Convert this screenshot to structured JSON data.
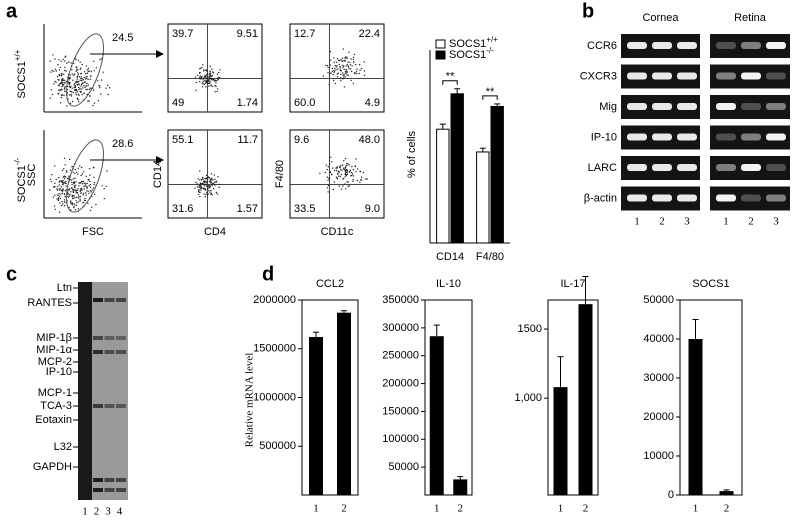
{
  "panel_labels": [
    "a",
    "b",
    "c",
    "d"
  ],
  "panel_a": {
    "rows": [
      {
        "genotype": {
          "name": "SOCS1",
          "sup": "+/+"
        },
        "gate": "24.5",
        "quadrants": [
          [
            "39.7",
            "9.51",
            "49",
            "1.74"
          ],
          [
            "12.7",
            "22.4",
            "60.0",
            "4.9"
          ]
        ]
      },
      {
        "genotype": {
          "name": "SOCS1",
          "sup": "-/-"
        },
        "gate": "28.6",
        "quadrants": [
          [
            "55.1",
            "11.7",
            "31.6",
            "1.57"
          ],
          [
            "9.6",
            "48.0",
            "33.5",
            "9.0"
          ]
        ]
      }
    ],
    "axes": {
      "ssc": "SSC",
      "fsc": "FSC",
      "cd14": "CD14",
      "cd4": "CD4",
      "f480": "F4/80",
      "cd11c": "CD11c"
    }
  },
  "panel_b": {
    "groups": [
      "Cornea",
      "Retina"
    ],
    "genes": [
      "CCR6",
      "CXCR3",
      "Mig",
      "IP-10",
      "LARC",
      "β-actin"
    ],
    "lanes": [
      "1",
      "2",
      "3"
    ]
  },
  "panel_c": {
    "genes": [
      "Ltn",
      "RANTES",
      "MIP-1β",
      "MIP-1α",
      "MCP-2",
      "IP-10",
      "MCP-1",
      "TCA-3",
      "Eotaxin",
      "L32",
      "GAPDH"
    ],
    "lanes": [
      "1",
      "2",
      "3",
      "4"
    ]
  },
  "panel_d": {
    "ylabel": "Relative mRNA level"
  },
  "chart_data": [
    {
      "type": "bar",
      "ylabel": "% of cells",
      "categories": [
        "CD14",
        "F4/80"
      ],
      "series": [
        {
          "name": "SOCS1",
          "name_sup": "+/+",
          "color": "#ffffff",
          "values": [
            45,
            36
          ],
          "errors": [
            2,
            1.5
          ]
        },
        {
          "name": "SOCS1",
          "name_sup": "-/-",
          "color": "#000000",
          "values": [
            59,
            54
          ],
          "errors": [
            2,
            1
          ]
        }
      ],
      "ylim": [
        0,
        70
      ],
      "annotations": [
        "**",
        "**"
      ],
      "legend": "top"
    },
    {
      "type": "bar",
      "title": "CCL2",
      "categories": [
        "1",
        "2"
      ],
      "values": [
        1620000,
        1870000
      ],
      "errors": [
        50000,
        20000
      ],
      "color": "#000000",
      "ylim": [
        0,
        2000000
      ],
      "yticks": [
        500000,
        1000000,
        1500000,
        2000000
      ]
    },
    {
      "type": "bar",
      "title": "IL-10",
      "categories": [
        "1",
        "2"
      ],
      "values": [
        285000,
        28000
      ],
      "errors": [
        20000,
        5000
      ],
      "color": "#000000",
      "ylim": [
        0,
        350000
      ],
      "yticks": [
        50000,
        100000,
        150000,
        200000,
        250000,
        300000,
        350000
      ]
    },
    {
      "type": "bar",
      "title": "IL-17",
      "categories": [
        "1",
        "2"
      ],
      "values": [
        1080,
        1680
      ],
      "errors": [
        220,
        200
      ],
      "color": "#000000",
      "ylim": [
        300,
        1710
      ],
      "yticks": [
        {
          "value": 1000,
          "label": "1,000"
        },
        1500
      ]
    },
    {
      "type": "bar",
      "title": "SOCS1",
      "categories": [
        "1",
        "2"
      ],
      "values": [
        40000,
        1000
      ],
      "errors": [
        5000,
        300
      ],
      "color": "#000000",
      "ylim": [
        0,
        50000
      ],
      "yticks": [
        0,
        10000,
        20000,
        30000,
        40000,
        50000
      ]
    }
  ]
}
